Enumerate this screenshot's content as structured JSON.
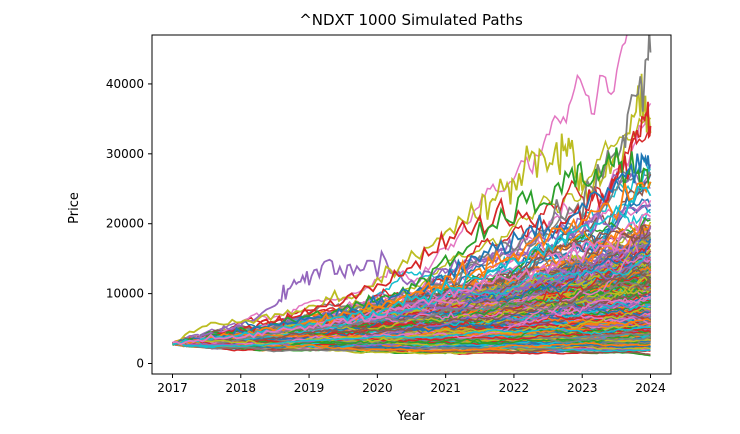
{
  "chart_data": {
    "type": "line",
    "title": "^NDXT 1000 Simulated Paths",
    "xlabel": "Year",
    "ylabel": "Price",
    "x_range": [
      2016.7,
      2024.3
    ],
    "ylim": [
      -1500,
      47000
    ],
    "x_ticks": [
      2017,
      2018,
      2019,
      2020,
      2021,
      2022,
      2023,
      2024
    ],
    "x_tick_labels": [
      "2017",
      "2018",
      "2019",
      "2020",
      "2021",
      "2022",
      "2023",
      "2024"
    ],
    "y_ticks": [
      0,
      10000,
      20000,
      30000,
      40000
    ],
    "y_tick_labels": [
      "0",
      "10000",
      "20000",
      "30000",
      "40000"
    ],
    "grid": false,
    "legend": "none",
    "start_value": 2900,
    "num_paths": 1000,
    "series_colors": [
      "#1f77b4",
      "#ff7f0e",
      "#2ca02c",
      "#d62728",
      "#9467bd",
      "#8c564b",
      "#e377c2",
      "#7f7f7f",
      "#bcbd22",
      "#17becf"
    ],
    "highlighted_paths": [
      {
        "color": "#9467bd",
        "x": [
          2017,
          2017.5,
          2018,
          2018.5,
          2018.75,
          2019,
          2019.3,
          2019.6,
          2020,
          2020.5,
          2021,
          2021.5,
          2022,
          2022.5,
          2023,
          2023.5,
          2024
        ],
        "y": [
          2900,
          4200,
          5500,
          8200,
          11500,
          12200,
          14500,
          13000,
          14800,
          12000,
          13500,
          15000,
          16500,
          18000,
          19000,
          21000,
          22500
        ]
      },
      {
        "color": "#bcbd22",
        "x": [
          2017,
          2017.5,
          2018,
          2018.5,
          2019,
          2019.5,
          2020,
          2020.5,
          2021,
          2021.5,
          2021.8,
          2022,
          2022.3,
          2022.6,
          2022.8,
          2023,
          2023.3,
          2023.6,
          2023.85,
          2024
        ],
        "y": [
          2900,
          5500,
          6200,
          7000,
          8000,
          9500,
          11500,
          15000,
          19000,
          21000,
          25000,
          26000,
          31000,
          29000,
          32000,
          24000,
          27000,
          30000,
          38000,
          33000
        ]
      },
      {
        "color": "#7f7f7f",
        "x": [
          2017,
          2017.5,
          2018,
          2018.5,
          2019,
          2019.5,
          2020,
          2020.5,
          2021,
          2021.5,
          2022,
          2022.5,
          2023,
          2023.3,
          2023.6,
          2023.85,
          2024
        ],
        "y": [
          2900,
          3600,
          4300,
          5200,
          6000,
          7000,
          8500,
          10000,
          12000,
          14500,
          17000,
          20000,
          23000,
          27000,
          32000,
          41000,
          44500
        ]
      },
      {
        "color": "#d62728",
        "x": [
          2017,
          2017.5,
          2018,
          2018.5,
          2019,
          2019.5,
          2020,
          2020.5,
          2021,
          2021.5,
          2022,
          2022.5,
          2023,
          2023.4,
          2023.7,
          2023.9,
          2024
        ],
        "y": [
          2900,
          3700,
          4800,
          6000,
          7500,
          9000,
          11000,
          14000,
          18000,
          20000,
          21000,
          19000,
          22000,
          25000,
          29000,
          36000,
          34000
        ]
      },
      {
        "color": "#2ca02c",
        "x": [
          2017,
          2017.5,
          2018,
          2018.5,
          2019,
          2019.5,
          2020,
          2020.5,
          2021,
          2021.5,
          2022,
          2022.5,
          2022.9,
          2023.2,
          2023.5,
          2023.8,
          2024
        ],
        "y": [
          2900,
          3800,
          4700,
          5600,
          6600,
          7800,
          9200,
          11000,
          14000,
          18000,
          22000,
          24000,
          26000,
          27500,
          29000,
          27000,
          26000
        ]
      },
      {
        "color": "#1f77b4",
        "x": [
          2017,
          2017.5,
          2018,
          2018.5,
          2019,
          2019.5,
          2020,
          2020.5,
          2021,
          2021.5,
          2022,
          2022.5,
          2023,
          2023.5,
          2023.85,
          2024
        ],
        "y": [
          2900,
          3500,
          4400,
          5300,
          6500,
          7200,
          8800,
          10500,
          12500,
          15000,
          17500,
          19000,
          22000,
          26000,
          28500,
          28000
        ]
      },
      {
        "color": "#ff7f0e",
        "x": [
          2017,
          2017.5,
          2018,
          2018.5,
          2019,
          2019.5,
          2020,
          2020.5,
          2021,
          2021.5,
          2022,
          2022.5,
          2023,
          2023.5,
          2024
        ],
        "y": [
          2900,
          3600,
          4200,
          5000,
          5800,
          6900,
          8000,
          9800,
          11500,
          13500,
          15500,
          18000,
          20000,
          23000,
          26000
        ]
      },
      {
        "color": "#17becf",
        "x": [
          2017,
          2017.5,
          2018,
          2018.5,
          2019,
          2019.5,
          2020,
          2020.5,
          2021,
          2021.5,
          2022,
          2022.5,
          2023,
          2023.5,
          2024
        ],
        "y": [
          2900,
          3500,
          4100,
          4800,
          5600,
          6500,
          7500,
          9000,
          10800,
          12500,
          14500,
          16500,
          19000,
          21500,
          24000
        ]
      },
      {
        "color": "#e377c2",
        "x": [
          2017,
          2017.5,
          2018,
          2018.5,
          2019,
          2019.5,
          2020,
          2020.5,
          2021,
          2021.5,
          2022,
          2022.5,
          2023,
          2023.5,
          2024
        ],
        "y": [
          2900,
          3400,
          3900,
          4500,
          5200,
          6000,
          6900,
          8000,
          9400,
          10800,
          12500,
          14000,
          16000,
          18000,
          21000
        ]
      }
    ]
  }
}
